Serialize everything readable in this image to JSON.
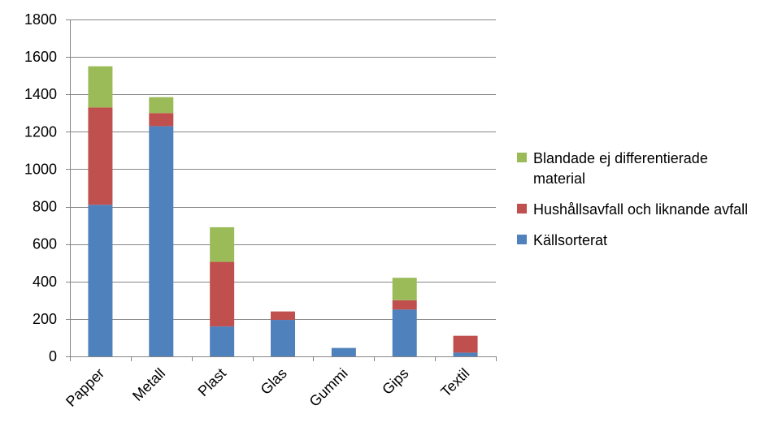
{
  "chart_data": {
    "type": "bar",
    "stacked": true,
    "categories": [
      "Papper",
      "Metall",
      "Plast",
      "Glas",
      "Gummi",
      "Gips",
      "Textil"
    ],
    "series": [
      {
        "name": "Källsorterat",
        "color": "#4F81BD",
        "values": [
          810,
          1230,
          160,
          195,
          45,
          250,
          20
        ]
      },
      {
        "name": "Hushållsavfall och liknande avfall",
        "color": "#C0504D",
        "values": [
          520,
          70,
          345,
          45,
          0,
          50,
          90
        ]
      },
      {
        "name": "Blandade ej differentierade material",
        "color": "#9BBB59",
        "values": [
          220,
          85,
          185,
          0,
          0,
          120,
          0
        ]
      }
    ],
    "ylim": [
      0,
      1800
    ],
    "yticks": [
      0,
      200,
      400,
      600,
      800,
      1000,
      1200,
      1400,
      1600,
      1800
    ],
    "ytick_labels": [
      "0",
      "200",
      "400",
      "600",
      "800",
      "1000",
      "1200",
      "1400",
      "1600",
      "1800"
    ],
    "grid": true,
    "legend_position": "right",
    "legend_order": [
      2,
      1,
      0
    ],
    "title": "",
    "xlabel": "",
    "ylabel": ""
  },
  "legend": {
    "item_0": "Blandade ej differentierade material",
    "item_1": "Hushållsavfall och liknande avfall",
    "item_2": "Källsorterat"
  }
}
